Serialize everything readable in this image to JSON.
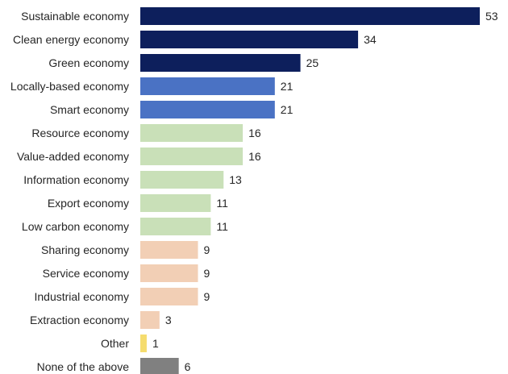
{
  "chart_data": {
    "type": "bar",
    "orientation": "horizontal",
    "title": "",
    "xlabel": "",
    "ylabel": "",
    "grid": false,
    "xlim": [
      0,
      53
    ],
    "categories": [
      "Sustainable economy",
      "Clean energy economy",
      "Green economy",
      "Locally-based economy",
      "Smart economy",
      "Resource economy",
      "Value-added economy",
      "Information economy",
      "Export economy",
      "Low carbon economy",
      "Sharing economy",
      "Service economy",
      "Industrial economy",
      "Extraction economy",
      "Other",
      "None of the above"
    ],
    "values": [
      53,
      34,
      25,
      21,
      21,
      16,
      16,
      13,
      11,
      11,
      9,
      9,
      9,
      3,
      1,
      6
    ],
    "colors": [
      "#0d1f5c",
      "#0d1f5c",
      "#0d1f5c",
      "#4a72c4",
      "#4a72c4",
      "#c9e0b8",
      "#c9e0b8",
      "#c9e0b8",
      "#c9e0b8",
      "#c9e0b8",
      "#f2cfb5",
      "#f2cfb5",
      "#f2cfb5",
      "#f2cfb5",
      "#f5dc6e",
      "#808080"
    ]
  }
}
